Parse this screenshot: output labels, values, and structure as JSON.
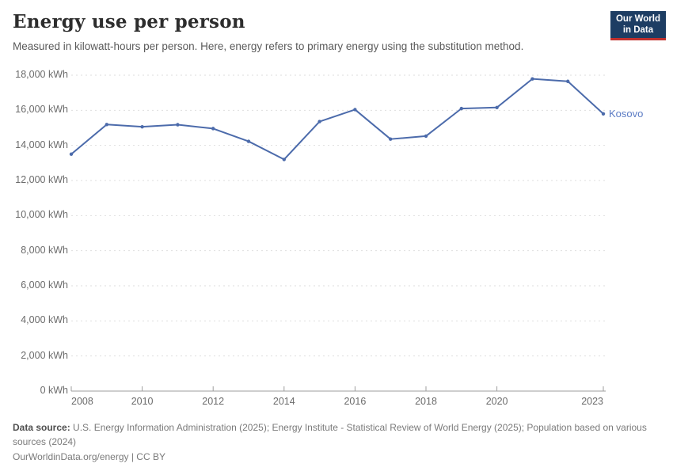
{
  "header": {
    "title": "Energy use per person",
    "subtitle": "Measured in kilowatt-hours per person. Here, energy refers to primary energy using the substitution method."
  },
  "logo": {
    "line1": "Our World",
    "line2": "in Data",
    "bg_color": "#1d3d63",
    "bar_color": "#c0312e"
  },
  "chart_data": {
    "type": "line",
    "title": "Energy use per person",
    "xlabel": "",
    "ylabel": "kWh",
    "ylim": [
      0,
      18000
    ],
    "xlim": [
      2008,
      2023
    ],
    "grid": "horizontal-dashed",
    "legend_position": "end-of-line",
    "x": [
      2008,
      2009,
      2010,
      2011,
      2012,
      2013,
      2014,
      2015,
      2016,
      2017,
      2018,
      2019,
      2020,
      2021,
      2022,
      2023
    ],
    "series": [
      {
        "name": "Kosovo",
        "color": "#4c6bab",
        "label_color": "#5b7bc4",
        "values": [
          13500,
          15190,
          15060,
          15180,
          14960,
          14230,
          13200,
          15360,
          16040,
          14360,
          14530,
          16100,
          16160,
          17790,
          17650,
          15800
        ]
      }
    ],
    "y_ticks": [
      0,
      2000,
      4000,
      6000,
      8000,
      10000,
      12000,
      14000,
      16000,
      18000
    ],
    "y_tick_labels": [
      "0 kWh",
      "2,000 kWh",
      "4,000 kWh",
      "6,000 kWh",
      "8,000 kWh",
      "10,000 kWh",
      "12,000 kWh",
      "14,000 kWh",
      "16,000 kWh",
      "18,000 kWh"
    ],
    "x_ticks": [
      2008,
      2010,
      2012,
      2014,
      2016,
      2018,
      2020,
      2023
    ],
    "x_tick_labels": [
      "2008",
      "2010",
      "2012",
      "2014",
      "2016",
      "2018",
      "2020",
      "2023"
    ]
  },
  "colors": {
    "grid": "#dedede",
    "axis": "#9e9e9e",
    "tick_label": "#6b6b6b",
    "title": "#2d2d2d",
    "subtitle": "#5a5a5a",
    "footer": "#7a7a7a"
  },
  "footer": {
    "data_source_label": "Data source:",
    "data_source_text": "U.S. Energy Information Administration (2025); Energy Institute - Statistical Review of World Energy (2025); Population based on various sources (2024)",
    "license_line": "OurWorldinData.org/energy | CC BY"
  }
}
